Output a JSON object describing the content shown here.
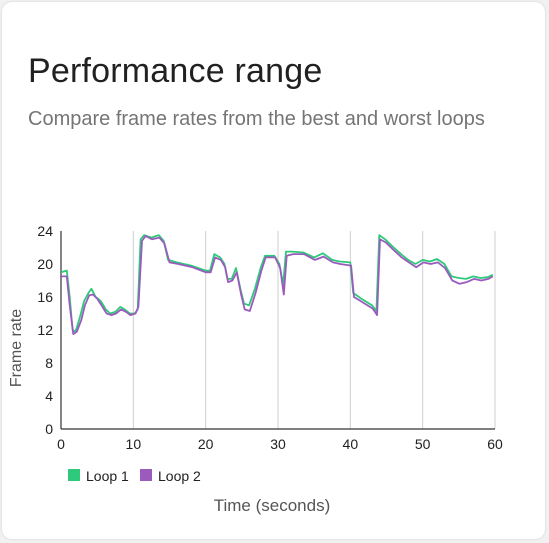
{
  "card": {
    "title": "Performance range",
    "subtitle": "Compare frame rates from the best and worst loops"
  },
  "chart_data": {
    "type": "line",
    "xlabel": "Time (seconds)",
    "ylabel": "Frame rate",
    "xlim": [
      0,
      60
    ],
    "ylim": [
      0,
      24
    ],
    "x_ticks": [
      0,
      10,
      20,
      30,
      40,
      50,
      60
    ],
    "y_ticks": [
      0,
      4,
      8,
      12,
      16,
      20,
      24
    ],
    "grid": "vertical",
    "legend_position": "bottom-left",
    "series": [
      {
        "name": "Loop 1",
        "color": "#2ec97a",
        "points": [
          [
            0,
            19
          ],
          [
            0.8,
            19.2
          ],
          [
            1.2,
            16
          ],
          [
            1.6,
            12
          ],
          [
            2,
            11.8
          ],
          [
            2.6,
            13.5
          ],
          [
            3.2,
            15.5
          ],
          [
            3.8,
            16.5
          ],
          [
            4.2,
            17
          ],
          [
            4.8,
            16
          ],
          [
            5.5,
            15.5
          ],
          [
            6.2,
            14.5
          ],
          [
            6.8,
            14
          ],
          [
            7.5,
            14.2
          ],
          [
            8.2,
            14.8
          ],
          [
            8.8,
            14.5
          ],
          [
            9.5,
            14
          ],
          [
            10.2,
            14
          ],
          [
            10.6,
            14.5
          ],
          [
            11,
            23
          ],
          [
            11.5,
            23.5
          ],
          [
            12.5,
            23.2
          ],
          [
            13.5,
            23.5
          ],
          [
            14.2,
            22.8
          ],
          [
            14.8,
            20.5
          ],
          [
            16,
            20.2
          ],
          [
            18,
            19.8
          ],
          [
            20,
            19.2
          ],
          [
            20.6,
            19.2
          ],
          [
            21.2,
            21.2
          ],
          [
            22,
            20.8
          ],
          [
            22.6,
            20
          ],
          [
            23,
            18.2
          ],
          [
            23.6,
            18.2
          ],
          [
            24.2,
            19.5
          ],
          [
            24.8,
            17
          ],
          [
            25.3,
            15.2
          ],
          [
            26,
            15
          ],
          [
            26.8,
            17
          ],
          [
            27.6,
            19.5
          ],
          [
            28.2,
            21
          ],
          [
            29.5,
            21
          ],
          [
            30.2,
            20
          ],
          [
            30.7,
            17.5
          ],
          [
            31.1,
            21.5
          ],
          [
            32,
            21.5
          ],
          [
            33.5,
            21.4
          ],
          [
            35,
            20.8
          ],
          [
            36.2,
            21.3
          ],
          [
            37.5,
            20.5
          ],
          [
            38.5,
            20.3
          ],
          [
            40,
            20.2
          ],
          [
            40.4,
            16.5
          ],
          [
            41.5,
            15.8
          ],
          [
            43,
            15
          ],
          [
            43.6,
            14.3
          ],
          [
            44,
            23.5
          ],
          [
            44.8,
            23
          ],
          [
            46,
            22
          ],
          [
            47,
            21.2
          ],
          [
            48,
            20.5
          ],
          [
            49,
            20
          ],
          [
            50,
            20.5
          ],
          [
            51,
            20.3
          ],
          [
            52,
            20.6
          ],
          [
            53,
            20
          ],
          [
            54,
            18.5
          ],
          [
            55,
            18.3
          ],
          [
            56,
            18.2
          ],
          [
            57,
            18.5
          ],
          [
            58,
            18.3
          ],
          [
            59,
            18.4
          ],
          [
            59.7,
            18.7
          ]
        ]
      },
      {
        "name": "Loop 2",
        "color": "#9a5bbd",
        "points": [
          [
            0,
            18.5
          ],
          [
            0.8,
            18.5
          ],
          [
            1.2,
            15
          ],
          [
            1.7,
            11.5
          ],
          [
            2.2,
            11.8
          ],
          [
            2.8,
            13.2
          ],
          [
            3.3,
            15
          ],
          [
            3.9,
            16.2
          ],
          [
            4.4,
            16.3
          ],
          [
            5,
            15.8
          ],
          [
            5.6,
            15
          ],
          [
            6.3,
            14
          ],
          [
            7,
            13.8
          ],
          [
            7.6,
            14
          ],
          [
            8.3,
            14.5
          ],
          [
            9,
            14.2
          ],
          [
            9.6,
            13.8
          ],
          [
            10.3,
            14
          ],
          [
            10.7,
            14.8
          ],
          [
            11.2,
            22.8
          ],
          [
            11.7,
            23.4
          ],
          [
            12.6,
            23
          ],
          [
            13.6,
            23.2
          ],
          [
            14.3,
            22.5
          ],
          [
            15,
            20.2
          ],
          [
            16.2,
            20
          ],
          [
            18.2,
            19.6
          ],
          [
            20,
            19
          ],
          [
            20.7,
            19
          ],
          [
            21.3,
            20.8
          ],
          [
            22.1,
            20.5
          ],
          [
            22.7,
            19.6
          ],
          [
            23.1,
            17.8
          ],
          [
            23.7,
            18
          ],
          [
            24.3,
            19
          ],
          [
            24.9,
            16.3
          ],
          [
            25.4,
            14.5
          ],
          [
            26.1,
            14.3
          ],
          [
            26.9,
            16.5
          ],
          [
            27.7,
            19.2
          ],
          [
            28.3,
            20.8
          ],
          [
            29.6,
            20.8
          ],
          [
            30.3,
            19.5
          ],
          [
            30.8,
            16.3
          ],
          [
            31.2,
            21
          ],
          [
            32.1,
            21.2
          ],
          [
            33.6,
            21.2
          ],
          [
            35.1,
            20.5
          ],
          [
            36.3,
            20.9
          ],
          [
            37.6,
            20.2
          ],
          [
            38.6,
            20
          ],
          [
            40.1,
            19.8
          ],
          [
            40.5,
            16
          ],
          [
            41.6,
            15.4
          ],
          [
            43.1,
            14.6
          ],
          [
            43.7,
            13.8
          ],
          [
            44.1,
            23
          ],
          [
            44.9,
            22.6
          ],
          [
            46.1,
            21.6
          ],
          [
            47.1,
            20.8
          ],
          [
            48.1,
            20.2
          ],
          [
            49.1,
            19.6
          ],
          [
            50.1,
            20.2
          ],
          [
            51.1,
            20
          ],
          [
            52.1,
            20.2
          ],
          [
            53.1,
            19.5
          ],
          [
            54.1,
            18
          ],
          [
            55.1,
            17.6
          ],
          [
            56.1,
            17.8
          ],
          [
            57.1,
            18.2
          ],
          [
            58.1,
            18
          ],
          [
            59.1,
            18.2
          ],
          [
            59.7,
            18.5
          ]
        ]
      }
    ]
  }
}
